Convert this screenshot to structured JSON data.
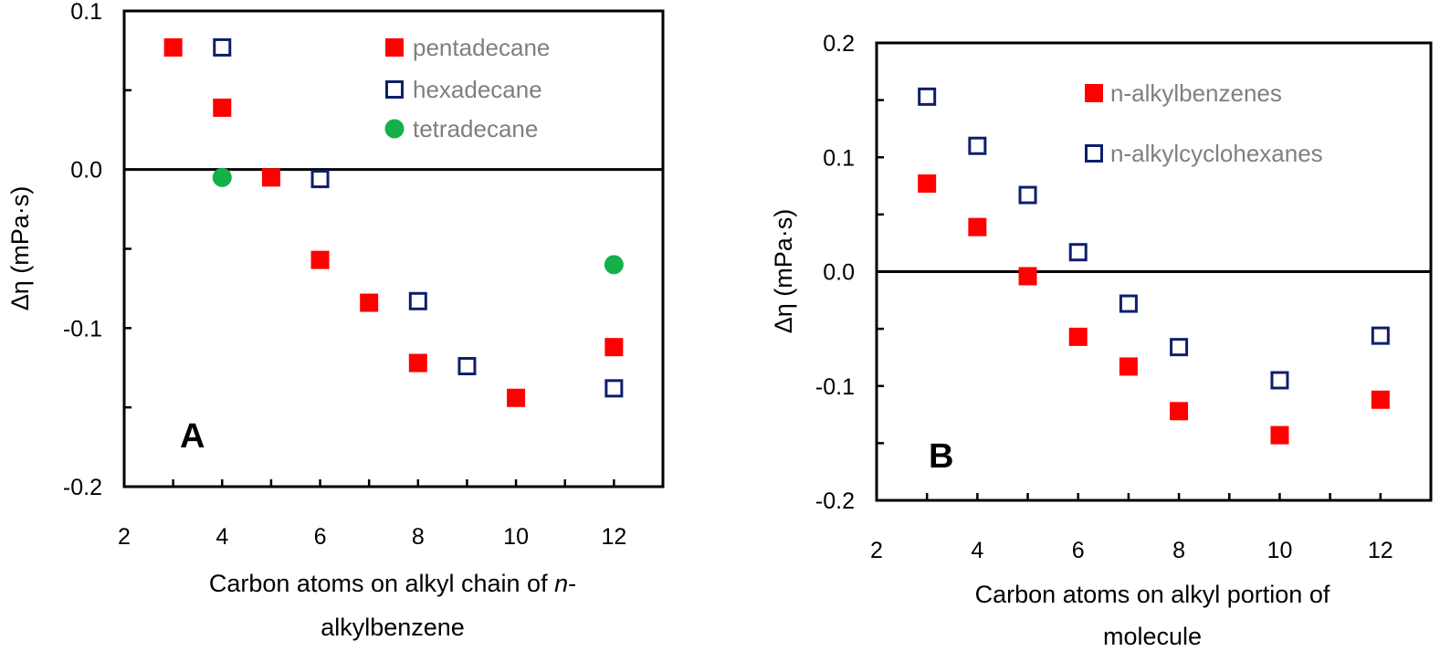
{
  "colors": {
    "red": "#ff0000",
    "navy": "#0d1f6b",
    "green": "#14b04a",
    "legend_text": "#7f7f7f"
  },
  "chart_data": [
    {
      "type": "scatter",
      "panel_label": "A",
      "title": "",
      "ylabel": "Δη (mPa·s)",
      "xlabel_main": "Carbon atoms on alkyl chain of ",
      "xlabel_italic": "n",
      "xlabel_tail": "-",
      "xlabel_line2": "alkylbenzene",
      "xlim": [
        2,
        13
      ],
      "ylim": [
        -0.2,
        0.1
      ],
      "xticks": [
        "2",
        "4",
        "6",
        "8",
        "10",
        "12"
      ],
      "yticks": [
        "0.1",
        "0.0",
        "-0.1",
        "-0.2"
      ],
      "ytick_values": [
        0.1,
        0.0,
        -0.1,
        -0.2
      ],
      "legend_position": "top-right",
      "series": [
        {
          "name": "pentadecane",
          "marker": "filled-square",
          "color": "#ff0000",
          "x": [
            3,
            4,
            5,
            6,
            7,
            8,
            10,
            12
          ],
          "y": [
            0.077,
            0.039,
            -0.005,
            -0.057,
            -0.084,
            -0.122,
            -0.144,
            -0.112
          ]
        },
        {
          "name": "hexadecane",
          "marker": "open-square",
          "color": "#0d1f6b",
          "x": [
            4,
            6,
            8,
            9,
            12
          ],
          "y": [
            0.077,
            -0.006,
            -0.083,
            -0.124,
            -0.138
          ]
        },
        {
          "name": "tetradecane",
          "marker": "circle",
          "color": "#14b04a",
          "x": [
            4,
            12
          ],
          "y": [
            -0.005,
            -0.06
          ]
        }
      ]
    },
    {
      "type": "scatter",
      "panel_label": "B",
      "title": "",
      "ylabel": "Δη (mPa·s)",
      "xlabel_main": "Carbon atoms on alkyl portion of",
      "xlabel_italic": "",
      "xlabel_tail": "",
      "xlabel_line2": "molecule",
      "xlim": [
        2,
        13
      ],
      "ylim": [
        -0.2,
        0.2
      ],
      "xticks": [
        "2",
        "4",
        "6",
        "8",
        "10",
        "12"
      ],
      "yticks": [
        "0.2",
        "0.1",
        "0.0",
        "-0.1",
        "-0.2"
      ],
      "ytick_values": [
        0.2,
        0.1,
        0.0,
        -0.1,
        -0.2
      ],
      "legend_position": "top-right",
      "series": [
        {
          "name": "n-alkylbenzenes",
          "marker": "filled-square",
          "color": "#ff0000",
          "x": [
            3,
            4,
            5,
            6,
            7,
            8,
            10,
            12
          ],
          "y": [
            0.077,
            0.039,
            -0.004,
            -0.057,
            -0.083,
            -0.122,
            -0.143,
            -0.112
          ]
        },
        {
          "name": "n-alkylcyclohexanes",
          "marker": "open-square",
          "color": "#0d1f6b",
          "x": [
            3,
            4,
            5,
            6,
            7,
            8,
            10,
            12
          ],
          "y": [
            0.153,
            0.11,
            0.067,
            0.017,
            -0.028,
            -0.066,
            -0.095,
            -0.056
          ]
        }
      ]
    }
  ]
}
